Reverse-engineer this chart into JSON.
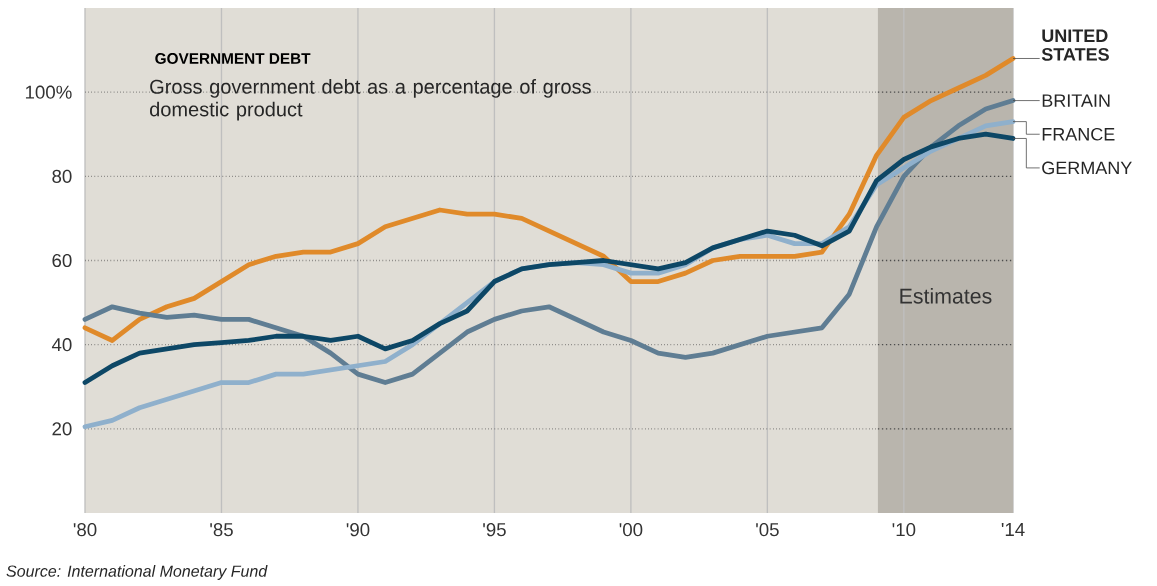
{
  "chart_data": {
    "type": "line",
    "title": "GOVERNMENT DEBT",
    "subtitle": "Gross government debt as a percentage of gross domestic product",
    "x": [
      1980,
      1981,
      1982,
      1983,
      1984,
      1985,
      1986,
      1987,
      1988,
      1989,
      1990,
      1991,
      1992,
      1993,
      1994,
      1995,
      1996,
      1997,
      1998,
      1999,
      2000,
      2001,
      2002,
      2003,
      2004,
      2005,
      2006,
      2007,
      2008,
      2009,
      2010,
      2011,
      2012,
      2013,
      2014
    ],
    "series": [
      {
        "name": "UNITED STATES",
        "color": "#e08a2a",
        "values": [
          44,
          41,
          46,
          49,
          51,
          55,
          59,
          61,
          62,
          62,
          64,
          68,
          70,
          72,
          71,
          71,
          70,
          67,
          64,
          61,
          55,
          55,
          57,
          60,
          61,
          61,
          61,
          62,
          71,
          85,
          94,
          98,
          101,
          104,
          108
        ]
      },
      {
        "name": "BRITAIN",
        "color": "#5f7d93",
        "values": [
          46,
          49,
          47.5,
          46.5,
          47,
          46,
          46,
          44,
          42,
          38,
          33,
          31,
          33,
          38,
          43,
          46,
          48,
          49,
          46,
          43,
          41,
          38,
          37,
          38,
          40,
          42,
          43,
          44,
          52,
          68,
          80,
          87,
          92,
          96,
          98
        ]
      },
      {
        "name": "FRANCE",
        "color": "#8fb0cc",
        "values": [
          20.5,
          22,
          25,
          27,
          29,
          31,
          31,
          33,
          33,
          34,
          35,
          36,
          40,
          45,
          50,
          55,
          58,
          59,
          59.5,
          59,
          57,
          57,
          59,
          63,
          65,
          66,
          64,
          64,
          68,
          78,
          82,
          86,
          89,
          92,
          93
        ]
      },
      {
        "name": "GERMANY",
        "color": "#0d4766",
        "values": [
          31,
          35,
          38,
          39,
          40,
          40.5,
          41,
          42,
          42,
          41,
          42,
          39,
          41,
          45,
          48,
          55,
          58,
          59,
          59.5,
          60,
          59,
          58,
          59.5,
          63,
          65,
          67,
          66,
          63.5,
          67,
          79,
          84,
          87,
          89,
          90,
          89
        ]
      }
    ],
    "xlim": [
      1980,
      2014
    ],
    "ylim": [
      0,
      120
    ],
    "xticks": [
      {
        "value": 1980,
        "label": "'80"
      },
      {
        "value": 1985,
        "label": "'85"
      },
      {
        "value": 1990,
        "label": "'90"
      },
      {
        "value": 1995,
        "label": "'95"
      },
      {
        "value": 2000,
        "label": "'00"
      },
      {
        "value": 2005,
        "label": "'05"
      },
      {
        "value": 2010,
        "label": "'10"
      },
      {
        "value": 2014,
        "label": "'14"
      }
    ],
    "yticks": [
      20,
      40,
      60,
      80,
      {
        "value": 100,
        "label": "100%"
      }
    ],
    "grid": true,
    "line_style": "solid",
    "bands": [
      {
        "axis": "x",
        "from": 2009.05,
        "to": 2014,
        "label": "Estimates",
        "color": "#b9b5ad"
      }
    ],
    "annotations": [
      "Source: International Monetary Fund"
    ]
  }
}
